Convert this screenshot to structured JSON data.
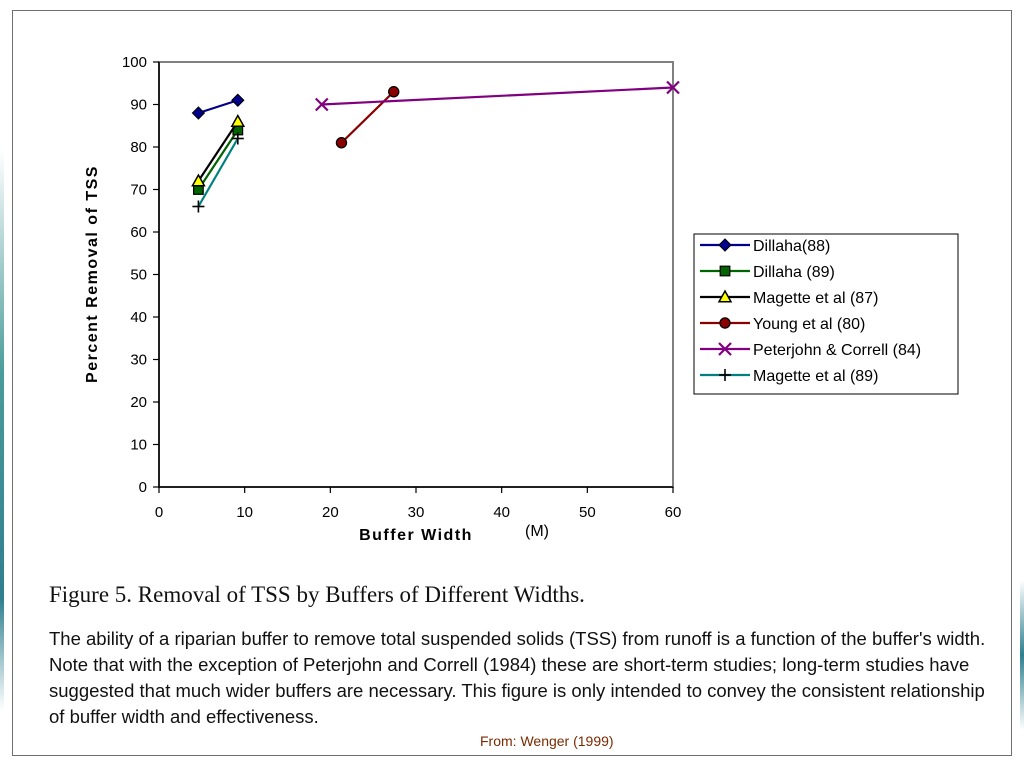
{
  "chart_data": {
    "type": "line",
    "xlabel": "Buffer   Width",
    "xunit": "(M)",
    "ylabel": "Percent  Removal  of  TSS",
    "xlim": [
      0,
      60
    ],
    "ylim": [
      0,
      100
    ],
    "xticks": [
      0,
      10,
      20,
      30,
      40,
      50,
      60
    ],
    "yticks": [
      0,
      10,
      20,
      30,
      40,
      50,
      60,
      70,
      80,
      90,
      100
    ],
    "grid": false,
    "legend_position": "right",
    "series": [
      {
        "name": "Dillaha(88)",
        "marker": "diamond",
        "color": "#00008b",
        "fill": "#00008b",
        "x": [
          4.6,
          9.2
        ],
        "y": [
          88,
          91
        ]
      },
      {
        "name": "Dillaha (89)",
        "marker": "square",
        "color": "#006400",
        "fill": "#006400",
        "x": [
          4.6,
          9.2
        ],
        "y": [
          70,
          84
        ]
      },
      {
        "name": "Magette et al (87)",
        "marker": "triangle",
        "color": "#000000",
        "fill": "#ffff00",
        "x": [
          4.6,
          9.2
        ],
        "y": [
          72,
          86
        ]
      },
      {
        "name": "Young et al (80)",
        "marker": "circle",
        "color": "#8b0000",
        "fill": "#8b0000",
        "x": [
          21.3,
          27.4
        ],
        "y": [
          81,
          93
        ]
      },
      {
        "name": "Peterjohn & Correll (84)",
        "marker": "x",
        "color": "#800080",
        "fill": "#800080",
        "x": [
          19,
          60
        ],
        "y": [
          90,
          94
        ]
      },
      {
        "name": "Magette et al (89)",
        "marker": "plus",
        "color": "#008080",
        "fill": "#000000",
        "x": [
          4.6,
          9.2
        ],
        "y": [
          66,
          82
        ]
      }
    ]
  },
  "figure": {
    "title": "Figure 5. Removal of TSS by Buffers of Different Widths.",
    "caption": "The ability of a riparian buffer to remove total suspended solids (TSS) from runoff is a function of the buffer's width.  Note that with the exception of Peterjohn and Correll (1984) these are short-term studies; long-term studies have suggested that much wider buffers are necessary.  This figure is only intended to convey the consistent relationship of buffer width and effectiveness.",
    "source": "From: Wenger (1999)"
  }
}
